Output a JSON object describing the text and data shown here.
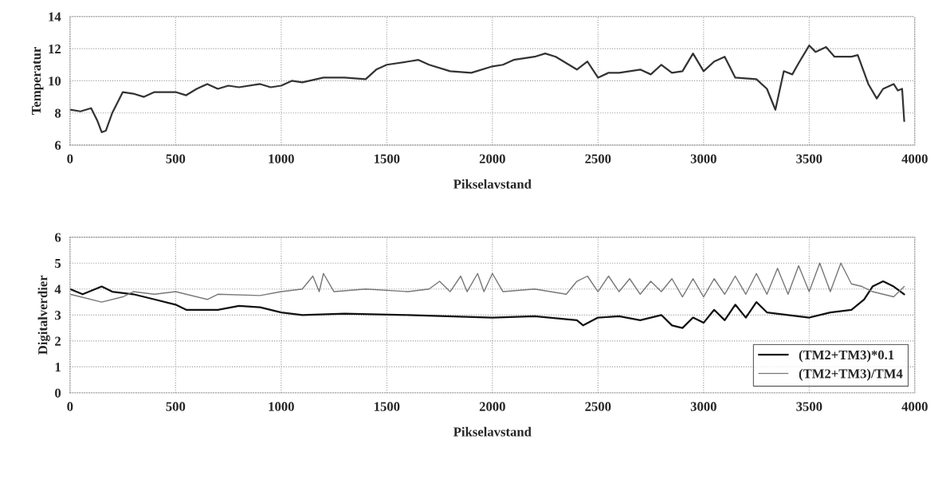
{
  "chart_data": [
    {
      "type": "line",
      "xlabel": "Pikselavstand",
      "ylabel": "Temperatur",
      "xlim": [
        0,
        4000
      ],
      "xticks": [
        0,
        500,
        1000,
        1500,
        2000,
        2500,
        3000,
        3500,
        4000
      ],
      "ylim": [
        6,
        14
      ],
      "yticks": [
        6,
        8,
        10,
        12,
        14
      ],
      "grid": true,
      "legend": false,
      "series": [
        {
          "color": "#333333",
          "x": [
            0,
            50,
            100,
            130,
            150,
            170,
            200,
            250,
            300,
            350,
            400,
            500,
            550,
            600,
            650,
            700,
            750,
            800,
            900,
            950,
            1000,
            1050,
            1100,
            1200,
            1300,
            1400,
            1450,
            1500,
            1600,
            1650,
            1700,
            1800,
            1900,
            2000,
            2050,
            2100,
            2200,
            2250,
            2300,
            2400,
            2450,
            2500,
            2550,
            2600,
            2700,
            2750,
            2800,
            2850,
            2900,
            2950,
            3000,
            3050,
            3100,
            3150,
            3250,
            3300,
            3340,
            3380,
            3420,
            3450,
            3500,
            3530,
            3580,
            3620,
            3700,
            3730,
            3780,
            3820,
            3850,
            3900,
            3920,
            3940,
            3950
          ],
          "values": [
            8.2,
            8.1,
            8.3,
            7.5,
            6.8,
            6.9,
            8.0,
            9.3,
            9.2,
            9.0,
            9.3,
            9.3,
            9.1,
            9.5,
            9.8,
            9.5,
            9.7,
            9.6,
            9.8,
            9.6,
            9.7,
            10.0,
            9.9,
            10.2,
            10.2,
            10.1,
            10.7,
            11.0,
            11.2,
            11.3,
            11.0,
            10.6,
            10.5,
            10.9,
            11.0,
            11.3,
            11.5,
            11.7,
            11.5,
            10.7,
            11.2,
            10.2,
            10.5,
            10.5,
            10.7,
            10.4,
            11.0,
            10.5,
            10.6,
            11.7,
            10.6,
            11.2,
            11.5,
            10.2,
            10.1,
            9.5,
            8.2,
            10.6,
            10.4,
            11.1,
            12.2,
            11.8,
            12.1,
            11.5,
            11.5,
            11.6,
            9.8,
            8.9,
            9.5,
            9.8,
            9.4,
            9.5,
            7.5
          ]
        }
      ]
    },
    {
      "type": "line",
      "xlabel": "Pikselavstand",
      "ylabel": "Digitalverdier",
      "xlim": [
        0,
        4000
      ],
      "xticks": [
        0,
        500,
        1000,
        1500,
        2000,
        2500,
        3000,
        3500,
        4000
      ],
      "ylim": [
        0,
        6
      ],
      "yticks": [
        0,
        1,
        2,
        3,
        4,
        5,
        6
      ],
      "grid": true,
      "legend": "bottom right",
      "series": [
        {
          "name": "(TM2+TM3)*0.1",
          "color": "#111111",
          "x": [
            0,
            60,
            150,
            200,
            300,
            400,
            500,
            550,
            700,
            800,
            900,
            1000,
            1100,
            1300,
            1600,
            2000,
            2200,
            2400,
            2430,
            2500,
            2600,
            2700,
            2800,
            2850,
            2900,
            2950,
            3000,
            3050,
            3100,
            3150,
            3200,
            3250,
            3300,
            3400,
            3500,
            3600,
            3700,
            3760,
            3800,
            3850,
            3900,
            3950
          ],
          "values": [
            4.0,
            3.8,
            4.1,
            3.9,
            3.8,
            3.6,
            3.4,
            3.2,
            3.2,
            3.35,
            3.3,
            3.1,
            3.0,
            3.05,
            3.0,
            2.9,
            2.95,
            2.8,
            2.6,
            2.9,
            2.95,
            2.8,
            3.0,
            2.6,
            2.5,
            2.9,
            2.7,
            3.2,
            2.8,
            3.4,
            2.9,
            3.5,
            3.1,
            3.0,
            2.9,
            3.1,
            3.2,
            3.6,
            4.1,
            4.3,
            4.1,
            3.8
          ]
        },
        {
          "name": "(TM2+TM3)/TM4",
          "color": "#777777",
          "x": [
            0,
            50,
            150,
            250,
            300,
            400,
            500,
            650,
            700,
            900,
            1000,
            1100,
            1150,
            1180,
            1200,
            1250,
            1400,
            1600,
            1700,
            1750,
            1800,
            1850,
            1880,
            1930,
            1960,
            2000,
            2050,
            2200,
            2350,
            2400,
            2450,
            2500,
            2550,
            2600,
            2650,
            2700,
            2750,
            2800,
            2850,
            2900,
            2950,
            3000,
            3050,
            3100,
            3150,
            3200,
            3250,
            3300,
            3350,
            3400,
            3450,
            3500,
            3550,
            3600,
            3650,
            3700,
            3750,
            3800,
            3850,
            3900,
            3950
          ],
          "values": [
            3.8,
            3.7,
            3.5,
            3.7,
            3.9,
            3.8,
            3.9,
            3.6,
            3.8,
            3.75,
            3.9,
            4.0,
            4.5,
            3.9,
            4.6,
            3.9,
            4.0,
            3.9,
            4.0,
            4.3,
            3.9,
            4.5,
            3.9,
            4.6,
            3.9,
            4.6,
            3.9,
            4.0,
            3.8,
            4.3,
            4.5,
            3.9,
            4.5,
            3.9,
            4.4,
            3.8,
            4.3,
            3.9,
            4.4,
            3.7,
            4.4,
            3.7,
            4.4,
            3.8,
            4.5,
            3.8,
            4.6,
            3.8,
            4.8,
            3.8,
            4.9,
            3.9,
            5.0,
            3.9,
            5.0,
            4.2,
            4.1,
            3.9,
            3.8,
            3.7,
            4.1
          ]
        }
      ]
    }
  ]
}
